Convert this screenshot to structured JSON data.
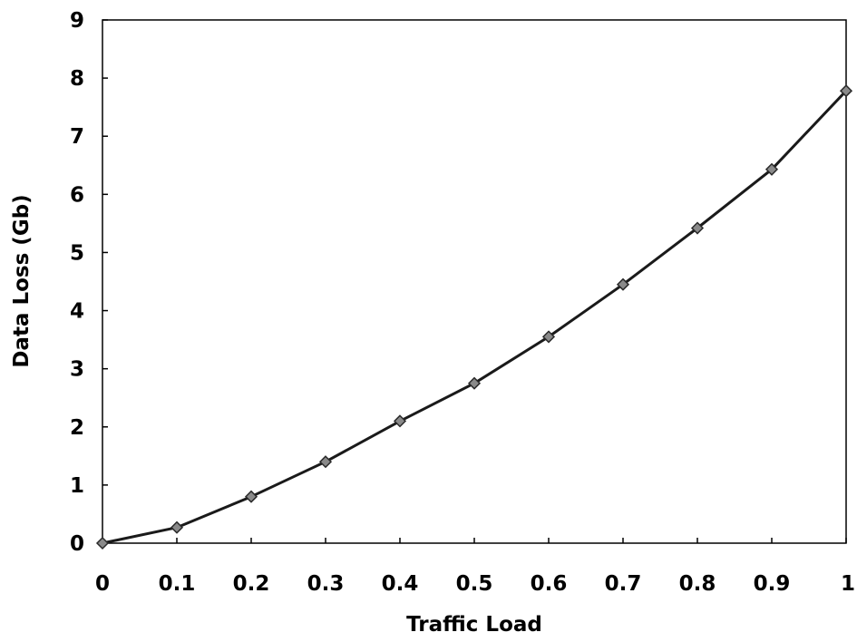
{
  "chart_data": {
    "type": "line",
    "title": "",
    "xlabel": "Traffic Load",
    "ylabel": "Data Loss (Gb)",
    "xlim": [
      0,
      1
    ],
    "ylim": [
      0,
      9
    ],
    "x_ticks": [
      "0",
      "0.1",
      "0.2",
      "0.3",
      "0.4",
      "0.5",
      "0.6",
      "0.7",
      "0.8",
      "0.9",
      "1"
    ],
    "y_ticks": [
      "0",
      "1",
      "2",
      "3",
      "4",
      "5",
      "6",
      "7",
      "8",
      "9"
    ],
    "grid": false,
    "legend": "none",
    "series": [
      {
        "x": [
          0,
          0.1,
          0.2,
          0.3,
          0.4,
          0.5,
          0.6,
          0.7,
          0.8,
          0.9,
          1.0
        ],
        "values": [
          0,
          0.27,
          0.8,
          1.4,
          2.1,
          2.75,
          3.55,
          4.45,
          5.42,
          6.43,
          7.78
        ],
        "color": "#1a1a1a",
        "marker": "diamond"
      }
    ]
  }
}
